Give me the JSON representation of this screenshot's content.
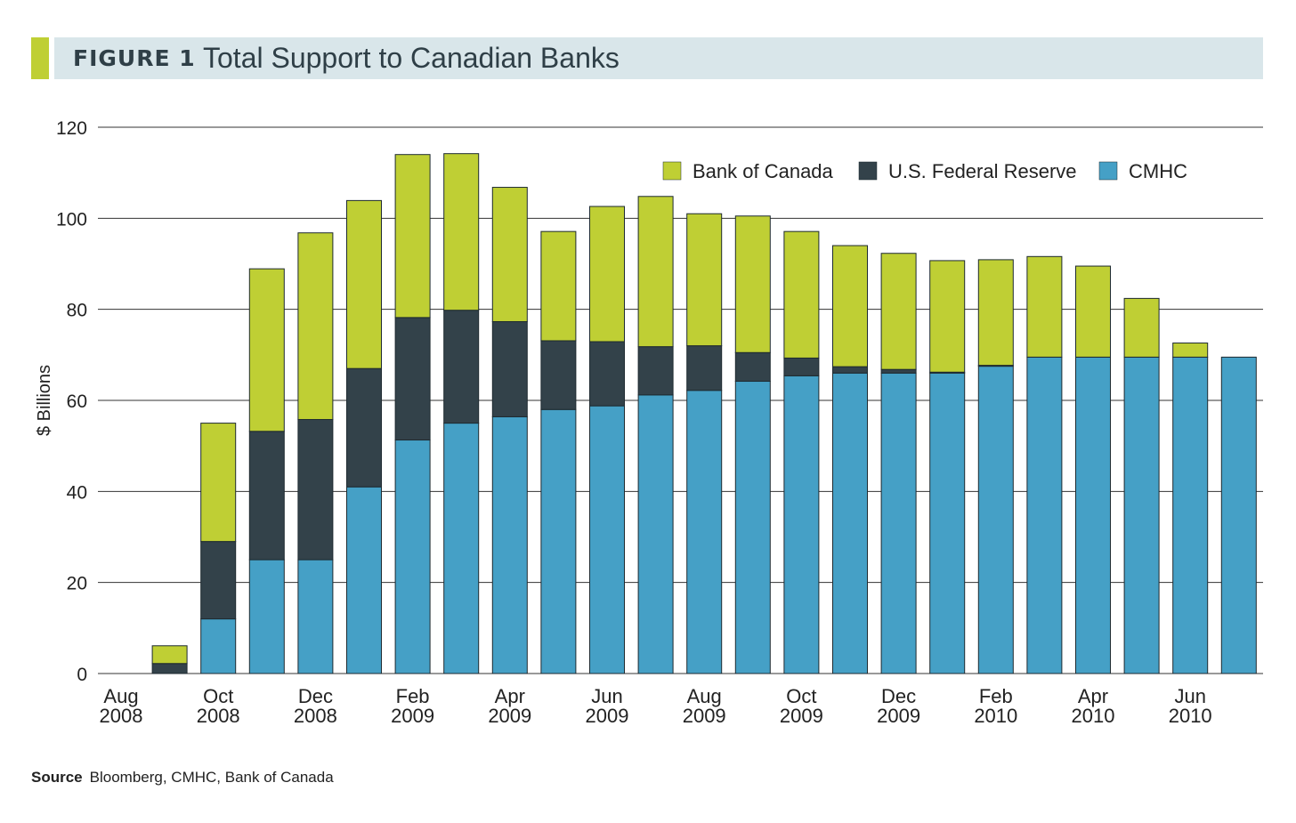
{
  "figure": {
    "label": "FIGURE 1",
    "title": "Total Support to Canadian Banks"
  },
  "source": {
    "label": "Source",
    "text": "Bloomberg, CMHC, Bank of Canada"
  },
  "colors": {
    "bank_of_canada": "#bfcf34",
    "federal_reserve": "#33424a",
    "cmhc": "#45a0c6",
    "header_band": "#d9e6ea",
    "grid": "#333333"
  },
  "chart_data": {
    "type": "bar",
    "stacked": true,
    "title": "Total Support to Canadian Banks",
    "ylabel": "$ Billions",
    "ylim": [
      0,
      120
    ],
    "yticks": [
      0,
      20,
      40,
      60,
      80,
      100,
      120
    ],
    "grid": true,
    "legend_position": "top-right",
    "categories": [
      "Aug 2008",
      "Sep 2008",
      "Oct 2008",
      "Nov 2008",
      "Dec 2008",
      "Jan 2009",
      "Feb 2009",
      "Mar 2009",
      "Apr 2009",
      "May 2009",
      "Jun 2009",
      "Jul 2009",
      "Aug 2009",
      "Sep 2009",
      "Oct 2009",
      "Nov 2009",
      "Dec 2009",
      "Jan 2010",
      "Feb 2010",
      "Mar 2010",
      "Apr 2010",
      "May 2010",
      "Jun 2010",
      "Jul 2010"
    ],
    "x_tick_labels": [
      {
        "index": 0,
        "month": "Aug",
        "year": "2008"
      },
      {
        "index": 2,
        "month": "Oct",
        "year": "2008"
      },
      {
        "index": 4,
        "month": "Dec",
        "year": "2008"
      },
      {
        "index": 6,
        "month": "Feb",
        "year": "2009"
      },
      {
        "index": 8,
        "month": "Apr",
        "year": "2009"
      },
      {
        "index": 10,
        "month": "Jun",
        "year": "2009"
      },
      {
        "index": 12,
        "month": "Aug",
        "year": "2009"
      },
      {
        "index": 14,
        "month": "Oct",
        "year": "2009"
      },
      {
        "index": 16,
        "month": "Dec",
        "year": "2009"
      },
      {
        "index": 18,
        "month": "Feb",
        "year": "2010"
      },
      {
        "index": 20,
        "month": "Apr",
        "year": "2010"
      },
      {
        "index": 22,
        "month": "Jun",
        "year": "2010"
      }
    ],
    "series": [
      {
        "name": "CMHC",
        "color": "#45a0c6",
        "values": [
          0,
          0,
          12,
          25,
          25,
          41,
          51.3,
          55,
          56.4,
          58,
          58.8,
          61.2,
          62.2,
          64.2,
          65.4,
          66,
          66,
          66,
          67.5,
          69.5,
          69.5,
          69.5,
          69.5,
          69.5
        ]
      },
      {
        "name": "U.S. Federal Reserve",
        "color": "#33424a",
        "values": [
          0,
          2.2,
          17,
          28.2,
          30.8,
          26,
          26.9,
          24.8,
          20.9,
          15.1,
          14.1,
          10.6,
          9.8,
          6.3,
          3.9,
          1.4,
          0.8,
          0.2,
          0.2,
          0,
          0,
          0,
          0,
          0
        ]
      },
      {
        "name": "Bank of Canada",
        "color": "#bfcf34",
        "values": [
          0,
          3.9,
          26,
          35.7,
          41,
          36.9,
          35.8,
          34.4,
          29.5,
          24,
          29.7,
          33,
          29,
          30,
          27.8,
          26.6,
          25.5,
          24.5,
          23.2,
          22.1,
          20,
          12.9,
          3.1,
          0
        ]
      }
    ],
    "legend_order": [
      "Bank of Canada",
      "U.S. Federal Reserve",
      "CMHC"
    ]
  }
}
